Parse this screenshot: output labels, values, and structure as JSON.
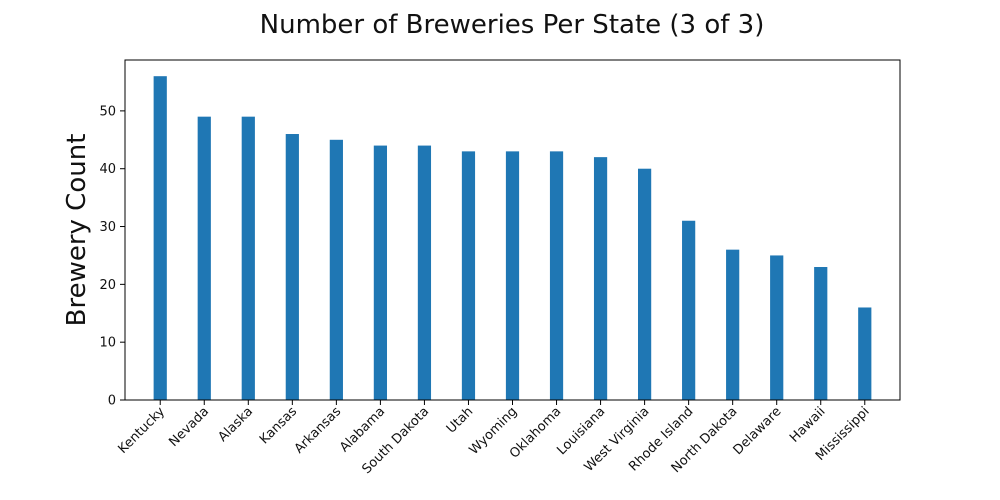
{
  "chart_data": {
    "type": "bar",
    "title": "Number of Breweries Per State (3 of 3)",
    "xlabel": "",
    "ylabel": "Brewery Count",
    "categories": [
      "Kentucky",
      "Nevada",
      "Alaska",
      "Kansas",
      "Arkansas",
      "Alabama",
      "South Dakota",
      "Utah",
      "Wyoming",
      "Oklahoma",
      "Louisiana",
      "West Virginia",
      "Rhode Island",
      "North Dakota",
      "Delaware",
      "Hawaii",
      "Mississippi"
    ],
    "values": [
      56,
      49,
      49,
      46,
      45,
      44,
      44,
      43,
      43,
      43,
      42,
      40,
      31,
      26,
      25,
      23,
      16
    ],
    "ylim": [
      0,
      58.8
    ],
    "yticks": [
      0,
      10,
      20,
      30,
      40,
      50
    ],
    "bar_color": "#1f77b4",
    "grid": false,
    "legend": "none"
  }
}
